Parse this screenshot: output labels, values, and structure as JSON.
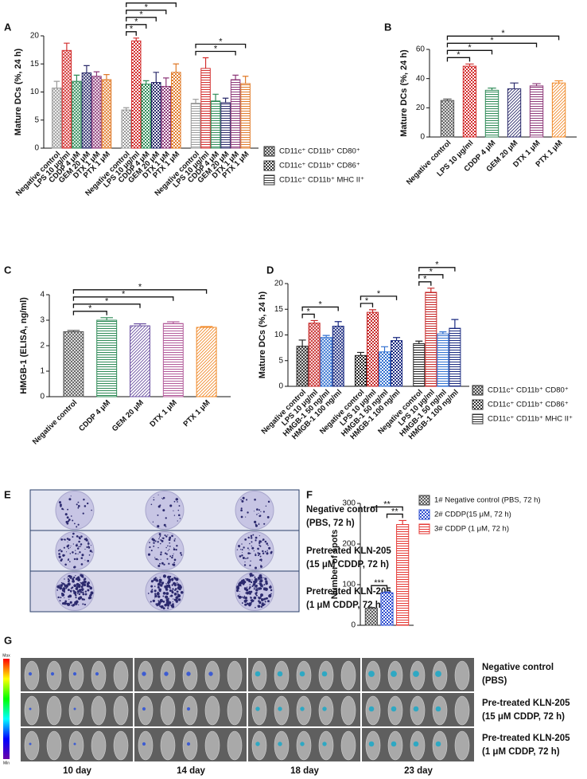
{
  "chart_data": [
    {
      "type": "bar",
      "panel_label": "A",
      "y_label": "Mature DCs (%, 24 h)",
      "categories": [
        "Negative control",
        "LPS 10 μg/ml",
        "CDDP 4 μM",
        "GEM 20 μM",
        "DTX 1 μM",
        "PTX 1 μM"
      ],
      "colors": [
        "#9a9a9a",
        "#d32f2f",
        "#2e8b57",
        "#2b2b6b",
        "#8e3a7a",
        "#e07b2a"
      ],
      "series": [
        {
          "name": "CD11c⁺ CD11b⁺ CD80⁺",
          "pattern": "crosshatch",
          "values": [
            10.7,
            17.4,
            11.9,
            13.4,
            12.8,
            12.2
          ],
          "errors": [
            1.2,
            1.3,
            1.1,
            1.3,
            0.8,
            0.9
          ]
        },
        {
          "name": "CD11c⁺ CD11b⁺ CD86⁺",
          "pattern": "checker",
          "values": [
            6.8,
            19.1,
            11.4,
            11.7,
            11.0,
            13.5
          ],
          "errors": [
            0.4,
            0.5,
            0.6,
            1.8,
            1.5,
            1.5
          ]
        },
        {
          "name": "CD11c⁺ CD11b⁺ MHC II⁺",
          "pattern": "hlines",
          "values": [
            8.0,
            14.2,
            8.4,
            8.1,
            12.2,
            11.5
          ],
          "errors": [
            0.7,
            1.9,
            1.2,
            0.8,
            0.8,
            1.3
          ]
        }
      ],
      "ylim": [
        0,
        20
      ],
      "yticks": [
        0,
        5,
        10,
        15,
        20
      ],
      "significance": [
        {
          "from": [
            1,
            0
          ],
          "to": [
            1,
            1
          ],
          "label": "*"
        },
        {
          "from": [
            1,
            0
          ],
          "to": [
            1,
            2
          ],
          "label": "*"
        },
        {
          "from": [
            1,
            0
          ],
          "to": [
            1,
            3
          ],
          "label": "*"
        },
        {
          "from": [
            1,
            0
          ],
          "to": [
            1,
            4
          ],
          "label": "*"
        },
        {
          "from": [
            1,
            0
          ],
          "to": [
            1,
            5
          ],
          "label": "*"
        },
        {
          "from": [
            2,
            0
          ],
          "to": [
            2,
            4
          ],
          "label": "*"
        },
        {
          "from": [
            2,
            0
          ],
          "to": [
            2,
            5
          ],
          "label": "*"
        }
      ]
    },
    {
      "type": "bar",
      "panel_label": "B",
      "y_label": "Mature DCs (%, 24 h)",
      "categories": [
        "Negative control",
        "LPS 10 μg/ml",
        "CDDP 4 μM",
        "GEM 20 μM",
        "DTX 1 μM",
        "PTX 1 μM"
      ],
      "colors": [
        "#555555",
        "#d32f2f",
        "#2e8b57",
        "#2b2b6b",
        "#8e3a7a",
        "#f08a2a"
      ],
      "patterns": [
        "crosshatch",
        "checker",
        "hlines",
        "diag",
        "hlines",
        "diag"
      ],
      "series": [
        {
          "values": [
            25,
            48.5,
            32,
            33,
            35,
            37
          ],
          "errors": [
            1,
            1.5,
            1.5,
            4,
            1.5,
            1.5
          ]
        }
      ],
      "ylim": [
        0,
        60
      ],
      "yticks": [
        0,
        20,
        40,
        60
      ],
      "significance": [
        {
          "from": [
            0,
            0
          ],
          "to": [
            0,
            1
          ],
          "label": "*"
        },
        {
          "from": [
            0,
            0
          ],
          "to": [
            0,
            2
          ],
          "label": "*"
        },
        {
          "from": [
            0,
            0
          ],
          "to": [
            0,
            4
          ],
          "label": "*"
        },
        {
          "from": [
            0,
            0
          ],
          "to": [
            0,
            5
          ],
          "label": "*"
        }
      ]
    },
    {
      "type": "bar",
      "panel_label": "C",
      "y_label": "HMGB-1 (ELISA, ng/ml)",
      "categories": [
        "Negative control",
        "CDDP 4 μM",
        "GEM 20 μM",
        "DTX 1 μM",
        "PTX 1 μM"
      ],
      "colors": [
        "#555555",
        "#2e8b57",
        "#6a4fa0",
        "#b25a9a",
        "#f08a2a"
      ],
      "patterns": [
        "crosshatch",
        "hlines",
        "diag",
        "hlines",
        "diag"
      ],
      "series": [
        {
          "values": [
            2.55,
            3.0,
            2.78,
            2.87,
            2.72
          ],
          "errors": [
            0.05,
            0.1,
            0.08,
            0.07,
            0.03
          ]
        }
      ],
      "ylim": [
        0,
        4
      ],
      "yticks": [
        0,
        1,
        2,
        3,
        4
      ],
      "significance": [
        {
          "from": [
            0,
            0
          ],
          "to": [
            0,
            1
          ],
          "label": "*"
        },
        {
          "from": [
            0,
            0
          ],
          "to": [
            0,
            2
          ],
          "label": "*"
        },
        {
          "from": [
            0,
            0
          ],
          "to": [
            0,
            3
          ],
          "label": "*"
        },
        {
          "from": [
            0,
            0
          ],
          "to": [
            0,
            4
          ],
          "label": "*"
        }
      ]
    },
    {
      "type": "bar",
      "panel_label": "D",
      "y_label": "Mature DCs (%, 24 h)",
      "categories": [
        "Negative control",
        "LPS 10 μg/ml",
        "HMGB-1 50 ng/ml",
        "HMGB-1 100 ng/ml"
      ],
      "colors": [
        "#222222",
        "#c62828",
        "#2f6fd0",
        "#1a2a80"
      ],
      "series": [
        {
          "name": "CD11c⁺ CD11b⁺ CD80⁺",
          "pattern": "crosshatch",
          "values": [
            7.8,
            12.3,
            9.5,
            11.7
          ],
          "errors": [
            1.2,
            0.5,
            0.4,
            0.9
          ]
        },
        {
          "name": "CD11c⁺ CD11b⁺ CD86⁺",
          "pattern": "checker",
          "values": [
            6.0,
            14.4,
            6.7,
            8.9
          ],
          "errors": [
            0.6,
            0.5,
            1.0,
            0.6
          ]
        },
        {
          "name": "CD11c⁺ CD11b⁺ MHC II⁺",
          "pattern": "hlines",
          "values": [
            8.3,
            18.3,
            10.2,
            11.3
          ],
          "errors": [
            0.5,
            0.8,
            0.4,
            1.7
          ]
        }
      ],
      "ylim": [
        0,
        20
      ],
      "yticks": [
        0,
        5,
        10,
        15,
        20
      ],
      "significance": [
        {
          "from": [
            0,
            0
          ],
          "to": [
            0,
            1
          ],
          "label": "*"
        },
        {
          "from": [
            0,
            0
          ],
          "to": [
            0,
            3
          ],
          "label": "*"
        },
        {
          "from": [
            1,
            0
          ],
          "to": [
            1,
            1
          ],
          "label": "*"
        },
        {
          "from": [
            1,
            0
          ],
          "to": [
            1,
            3
          ],
          "label": "*"
        },
        {
          "from": [
            2,
            0
          ],
          "to": [
            2,
            1
          ],
          "label": "*"
        },
        {
          "from": [
            2,
            0
          ],
          "to": [
            2,
            2
          ],
          "label": "*"
        },
        {
          "from": [
            2,
            0
          ],
          "to": [
            2,
            3
          ],
          "label": "*"
        }
      ]
    },
    {
      "type": "bar",
      "panel_label": "F",
      "y_label": "Number of spots",
      "series": [
        {
          "name": "1# Negative control (PBS, 72 h)",
          "color": "#444444",
          "pattern": "crosshatch",
          "values": [
            42
          ],
          "errors": [
            2
          ]
        },
        {
          "name": "2# CDDP(15 μM, 72 h)",
          "color": "#2f4fd0",
          "pattern": "checker",
          "values": [
            80
          ],
          "errors": [
            2
          ]
        },
        {
          "name": "3# CDDP (1 μM, 72 h)",
          "color": "#e53935",
          "pattern": "hlines",
          "values": [
            248
          ],
          "errors": [
            10
          ]
        }
      ],
      "ylim": [
        0,
        300
      ],
      "yticks": [
        0,
        100,
        200,
        300
      ],
      "significance": [
        {
          "from": [
            0,
            0
          ],
          "to": [
            1,
            0
          ],
          "label": "***"
        },
        {
          "from": [
            1,
            0
          ],
          "to": [
            2,
            0
          ],
          "label": "**"
        },
        {
          "from": [
            0,
            0
          ],
          "to": [
            2,
            0
          ],
          "label": "**"
        }
      ]
    }
  ],
  "image_panels": {
    "E": {
      "panel_label": "E",
      "rows": [
        [
          "Negative control",
          "(PBS, 72 h)"
        ],
        [
          "Pretreated KLN-205",
          "(15 μM CDDP, 72 h)"
        ],
        [
          "Pretreated KLN-205",
          "(1 μM CDDP, 72 h)"
        ]
      ]
    },
    "G": {
      "panel_label": "G",
      "scale": [
        "Max",
        "Min"
      ],
      "rows": [
        [
          "Negative control",
          "(PBS)"
        ],
        [
          "Pre-treated KLN-205",
          "(15 μM CDDP, 72 h)"
        ],
        [
          "Pre-treated KLN-205",
          "(1 μM CDDP, 72 h)"
        ]
      ],
      "days": [
        "10 day",
        "14 day",
        "18 day",
        "23 day"
      ]
    }
  }
}
